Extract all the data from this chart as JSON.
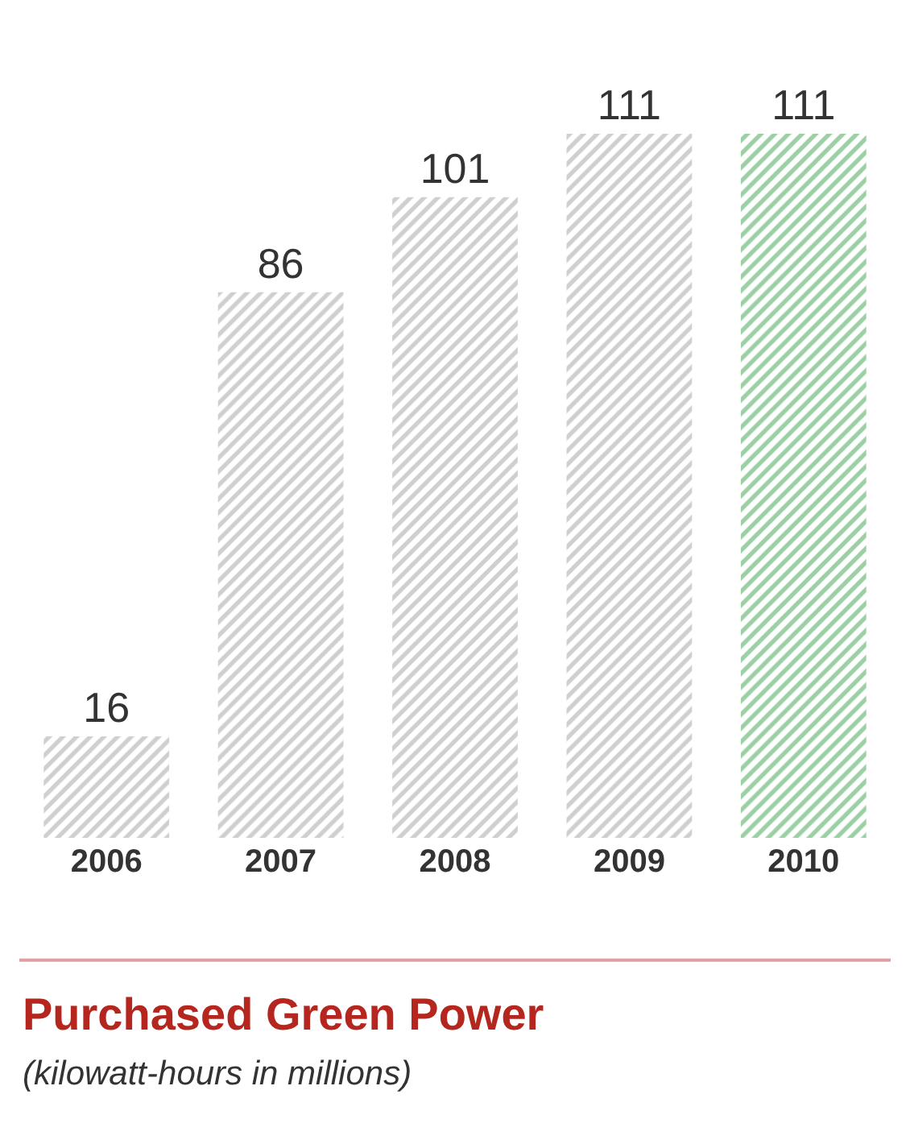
{
  "chart_data": {
    "type": "bar",
    "title": "Purchased Green Power",
    "subtitle": "(kilowatt-hours in millions)",
    "categories": [
      "2006",
      "2007",
      "2008",
      "2009",
      "2010"
    ],
    "values": [
      16,
      86,
      101,
      111,
      111
    ],
    "colors": [
      "#a0a0a0",
      "#a0a0a0",
      "#a0a0a0",
      "#a0a0a0",
      "#3aa048"
    ],
    "data_labels": true,
    "legend": false
  }
}
